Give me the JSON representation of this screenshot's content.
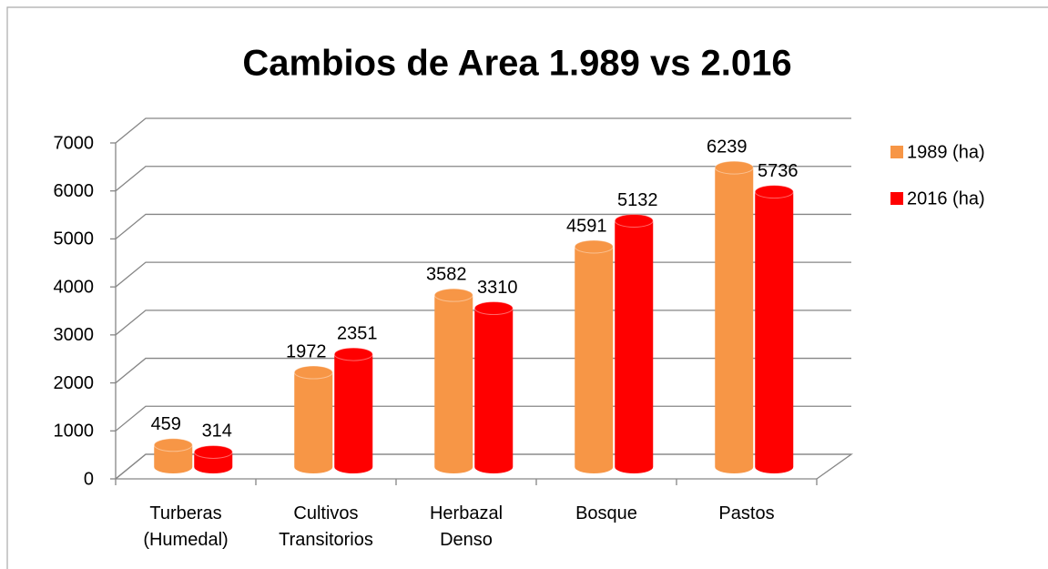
{
  "chart_data": {
    "type": "bar3d",
    "title": "Cambios de Area  1.989 vs 2.016",
    "categories": [
      "Turberas (Humedal)",
      "Cultivos Transitorios",
      "Herbazal Denso",
      "Bosque",
      "Pastos"
    ],
    "series": [
      {
        "name": "1989 (ha)",
        "color": "#F79646",
        "values": [
          459,
          1972,
          3582,
          4591,
          6239
        ]
      },
      {
        "name": "2016 (ha)",
        "color": "#FF0000",
        "values": [
          314,
          2351,
          3310,
          5132,
          5736
        ]
      }
    ],
    "ylim": [
      0,
      7000
    ],
    "yticks": [
      0,
      1000,
      2000,
      3000,
      4000,
      5000,
      6000,
      7000
    ],
    "grid": true,
    "legend": "right"
  }
}
